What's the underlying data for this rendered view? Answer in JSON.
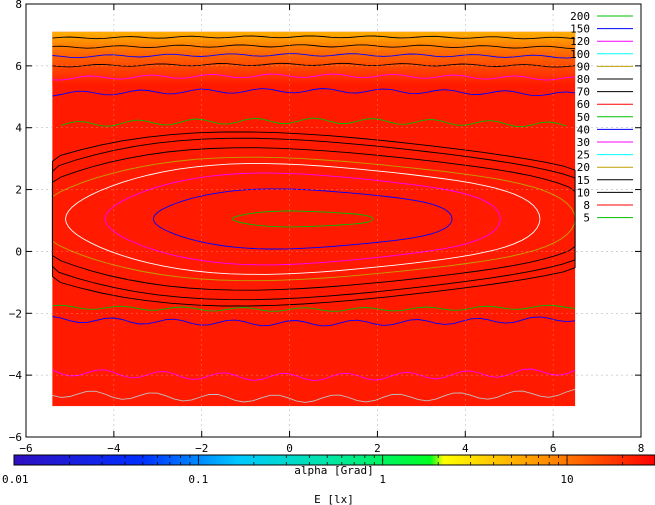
{
  "chart_data": {
    "type": "heatmap",
    "xlabel": "alpha [Grad]",
    "xlim": [
      -6,
      8
    ],
    "ylim": [
      -6,
      8
    ],
    "xticks": [
      "−6",
      "−4",
      "−2",
      "0",
      "2",
      "4",
      "6",
      "8"
    ],
    "yticks": [
      "8",
      "6",
      "4",
      "2",
      "0",
      "−2",
      "−4",
      "−6"
    ],
    "grid": true,
    "data_extent": {
      "x": [
        -5.4,
        6.5
      ],
      "y": [
        -5.0,
        7.1
      ]
    },
    "colorbar": {
      "label": "E [lx]",
      "scale": "log",
      "range": [
        0.01,
        30
      ],
      "ticks": [
        "0.01",
        "0.1",
        "1",
        "10"
      ],
      "tick_values": [
        0.01,
        0.1,
        1,
        10
      ]
    },
    "legend": {
      "placement": "top-right",
      "entries": [
        {
          "label": "200",
          "color": "#00c000"
        },
        {
          "label": "150",
          "color": "#0000ff"
        },
        {
          "label": "120",
          "color": "#ff00ff"
        },
        {
          "label": "100",
          "color": "#00ffff"
        },
        {
          "label": "90",
          "color": "#c0a000"
        },
        {
          "label": "80",
          "color": "#000000"
        },
        {
          "label": "70",
          "color": "#000000"
        },
        {
          "label": "60",
          "color": "#ff0000"
        },
        {
          "label": "50",
          "color": "#00c000"
        },
        {
          "label": "40",
          "color": "#0000ff"
        },
        {
          "label": "30",
          "color": "#ff00ff"
        },
        {
          "label": "25",
          "color": "#00ffff"
        },
        {
          "label": "20",
          "color": "#c0a000"
        },
        {
          "label": "15",
          "color": "#000000"
        },
        {
          "label": "10",
          "color": "#000000"
        },
        {
          "label": "8",
          "color": "#ff0000"
        },
        {
          "label": "5",
          "color": "#00c000"
        }
      ]
    },
    "contours": [
      {
        "y_center": 6.9,
        "color": "#000000",
        "x_span": [
          -5.4,
          6.5
        ],
        "amplitude": 0.05
      },
      {
        "y_center": 6.6,
        "color": "#000000",
        "x_span": [
          -5.4,
          6.5
        ],
        "amplitude": 0.06
      },
      {
        "y_center": 6.3,
        "color": "#0000ff",
        "x_span": [
          -5.4,
          6.5
        ],
        "amplitude": 0.07
      },
      {
        "y_center": 6.0,
        "color": "#000000",
        "x_span": [
          -5.4,
          6.5
        ],
        "amplitude": 0.06
      },
      {
        "y_center": 5.6,
        "color": "#ff00ff",
        "x_span": [
          -5.4,
          6.5
        ],
        "amplitude": 0.1
      },
      {
        "y_center": 5.1,
        "color": "#0000ff",
        "x_span": [
          -5.4,
          6.5
        ],
        "amplitude": 0.12
      },
      {
        "y_center": 4.1,
        "color": "#00c000",
        "x_span": [
          -5.2,
          6.3
        ],
        "amplitude": 0.15
      },
      {
        "y_center": -1.8,
        "color": "#00c000",
        "x_span": [
          -5.4,
          6.5
        ],
        "amplitude": 0.1
      },
      {
        "y_center": -2.2,
        "color": "#0000ff",
        "x_span": [
          -5.4,
          6.5
        ],
        "amplitude": 0.15
      },
      {
        "y_center": -3.9,
        "color": "#ff00ff",
        "x_span": [
          -5.4,
          6.5
        ],
        "amplitude": 0.2
      },
      {
        "y_center": -4.6,
        "color": "#c0c0c0",
        "x_span": [
          -5.4,
          6.5
        ],
        "amplitude": 0.2
      }
    ],
    "ellipses": [
      {
        "cx": 0.3,
        "cy": 1.05,
        "rx": 1.6,
        "ry": 0.25,
        "color": "#00c000"
      },
      {
        "cx": 0.3,
        "cy": 1.05,
        "rx": 3.4,
        "ry": 0.95,
        "color": "#0000ff"
      },
      {
        "cx": 0.3,
        "cy": 1.05,
        "rx": 4.5,
        "ry": 1.45,
        "color": "#ff00ff"
      },
      {
        "cx": 0.3,
        "cy": 1.05,
        "rx": 5.4,
        "ry": 1.75,
        "color": "#ffffff"
      },
      {
        "cx": 0.3,
        "cy": 1.05,
        "rx": 6.2,
        "ry": 1.95,
        "color": "#c0a000"
      },
      {
        "cx": 0.3,
        "cy": 1.05,
        "rx": 6.8,
        "ry": 2.25,
        "color": "#000000"
      },
      {
        "cx": 0.3,
        "cy": 1.05,
        "rx": 7.3,
        "ry": 2.55,
        "color": "#000000"
      },
      {
        "cx": 0.3,
        "cy": 1.05,
        "rx": 7.8,
        "ry": 2.75,
        "color": "#000000"
      }
    ]
  }
}
